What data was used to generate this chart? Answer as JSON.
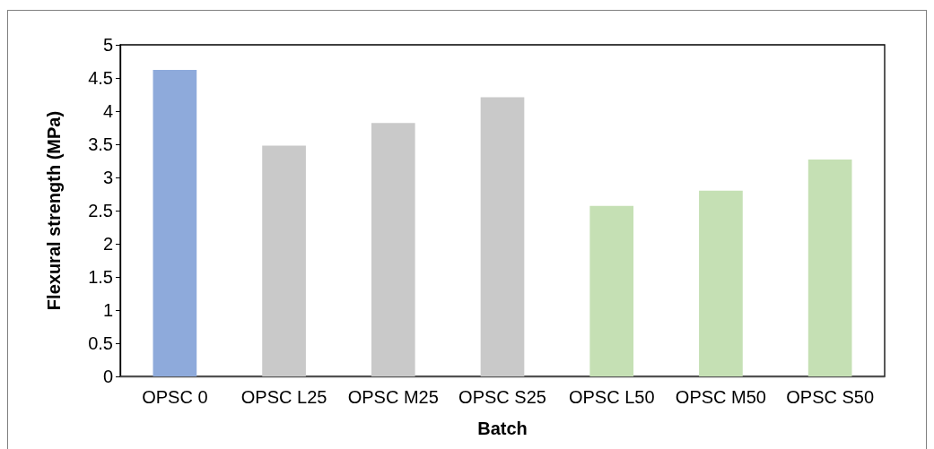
{
  "chart_data": {
    "type": "bar",
    "xlabel": "Batch",
    "ylabel": "Flexural strength (MPa)",
    "categories": [
      "OPSC 0",
      "OPSC L25",
      "OPSC M25",
      "OPSC S25",
      "OPSC L50",
      "OPSC M50",
      "OPSC S50"
    ],
    "values": [
      4.62,
      3.48,
      3.82,
      4.21,
      2.57,
      2.8,
      3.27
    ],
    "colors": [
      "#8eaadb",
      "#c9c9c9",
      "#c9c9c9",
      "#c9c9c9",
      "#c5e0b4",
      "#c5e0b4",
      "#c5e0b4"
    ],
    "ylim": [
      0,
      5
    ],
    "yticks": [
      0,
      0.5,
      1,
      1.5,
      2,
      2.5,
      3,
      3.5,
      4,
      4.5,
      5
    ],
    "grid": false
  }
}
